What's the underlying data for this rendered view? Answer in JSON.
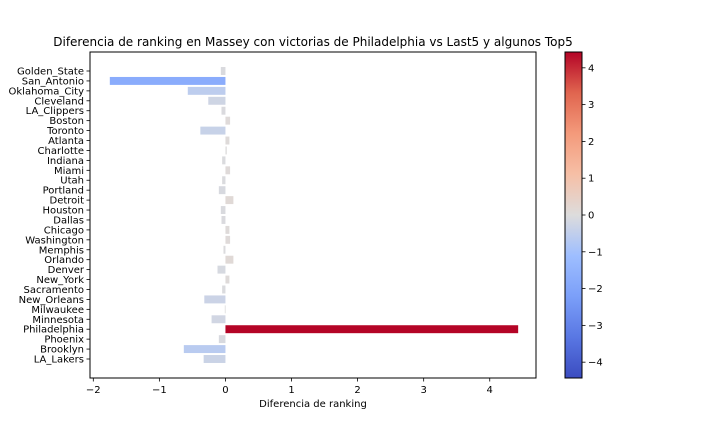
{
  "chart_data": {
    "type": "bar",
    "orientation": "horizontal",
    "title": "Diferencia de ranking en Massey con victorias de Philadelphia vs Last5 y algunos Top5",
    "xlabel": "Diferencia de ranking",
    "ylabel": "",
    "xlim": [
      -2.05,
      4.7
    ],
    "xticks": [
      -2,
      -1,
      0,
      1,
      2,
      3,
      4
    ],
    "categories": [
      "Golden_State",
      "San_Antonio",
      "Oklahoma_City",
      "Cleveland",
      "LA_Clippers",
      "Boston",
      "Toronto",
      "Atlanta",
      "Charlotte",
      "Indiana",
      "Miami",
      "Utah",
      "Portland",
      "Detroit",
      "Houston",
      "Dallas",
      "Chicago",
      "Washington",
      "Memphis",
      "Orlando",
      "Denver",
      "New_York",
      "Sacramento",
      "New_Orleans",
      "Milwaukee",
      "Minnesota",
      "Philadelphia",
      "Phoenix",
      "Brooklyn",
      "LA_Lakers"
    ],
    "values": [
      -0.07,
      -1.75,
      -0.57,
      -0.26,
      -0.06,
      0.07,
      -0.38,
      0.06,
      0.02,
      -0.05,
      0.07,
      -0.05,
      -0.1,
      0.12,
      -0.07,
      -0.06,
      0.06,
      0.07,
      -0.03,
      0.12,
      -0.12,
      0.06,
      -0.05,
      -0.32,
      -0.01,
      -0.21,
      4.43,
      -0.1,
      -0.63,
      -0.33
    ],
    "grid": false,
    "legend": "none",
    "colorbar": {
      "colormap": "coolwarm",
      "vmin": -4.43,
      "vmax": 4.43,
      "ticks": [
        -4,
        -3,
        -2,
        -1,
        0,
        1,
        2,
        3,
        4
      ],
      "tick_labels": [
        "−4",
        "−3",
        "−2",
        "−1",
        "0",
        "1",
        "2",
        "3",
        "4"
      ]
    }
  }
}
